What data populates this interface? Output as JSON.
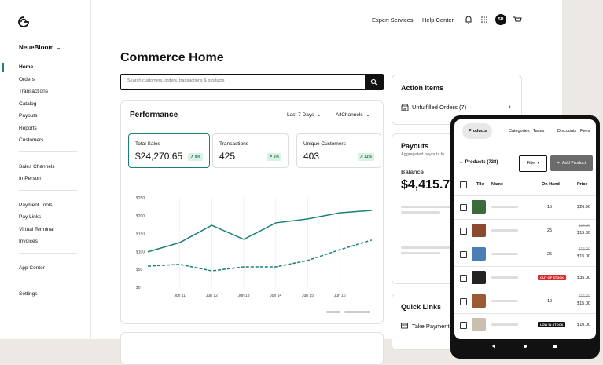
{
  "sidebar": {
    "store": "NeueBloom",
    "nav_groups": [
      [
        "Home",
        "Orders",
        "Transactions",
        "Catalog",
        "Payouts",
        "Reports",
        "Customers"
      ],
      [
        "Sales Channels",
        "In Person"
      ],
      [
        "Payment Tools",
        "Pay Links",
        "Virtual Terminal",
        "Invoices"
      ],
      [
        "App Center"
      ],
      [
        "Settings"
      ]
    ]
  },
  "header": {
    "links": [
      "Expert Services",
      "Help Center"
    ],
    "avatar": "SR"
  },
  "page_title": "Commerce Home",
  "search_placeholder": "Search customers, orders, transactions & products",
  "performance": {
    "title": "Performance",
    "filters": [
      "Last 7 Days",
      "AllChannels"
    ],
    "kpis": [
      {
        "label": "Total Sales",
        "value": "$24,270.65",
        "change": "9%"
      },
      {
        "label": "Transactions",
        "value": "425",
        "change": "5%"
      },
      {
        "label": "Unique Customers",
        "value": "403",
        "change": "11%"
      }
    ],
    "chart": {
      "type": "line",
      "categories": [
        null,
        "Jun 11",
        "Jun 12",
        "Jun 13",
        "Jun 14",
        "Jun 15",
        "Jun 16",
        null
      ],
      "ylim": [
        0,
        250
      ],
      "yticks": [
        {
          "value": 0,
          "label": "$0"
        },
        {
          "value": 50,
          "label": "$50"
        },
        {
          "value": 100,
          "label": "$100"
        },
        {
          "value": 150,
          "label": "$150"
        },
        {
          "value": 200,
          "label": "$200"
        },
        {
          "value": 250,
          "label": "$250"
        }
      ],
      "series": [
        {
          "color": "#1b7f79",
          "style": "solid",
          "values": [
            99,
            125,
            173,
            134,
            180,
            191,
            208,
            215
          ]
        },
        {
          "color": "#1b7f79",
          "style": "dashed",
          "values": [
            59,
            64,
            46,
            57,
            57,
            75,
            105,
            132
          ]
        }
      ]
    }
  },
  "action_items": {
    "title": "Action Items",
    "items": [
      "Unfulfilled Orders (7)"
    ]
  },
  "payouts": {
    "title": "Payouts",
    "subtitle": "Aggregated payouts fo",
    "balance_label": "Balance",
    "balance": "$4,415.7"
  },
  "quick_links": {
    "title": "Quick Links",
    "items": [
      "Take Payment"
    ]
  },
  "phone": {
    "tabs": [
      "Products",
      "Categories",
      "Taxes",
      "Discounts",
      "Fees"
    ],
    "products_count": "Products (728)",
    "filter": "Filter",
    "add": "Add Product",
    "columns": [
      "Tile",
      "Name",
      "On Hand",
      "Price"
    ],
    "rows": [
      {
        "on_hand": "15",
        "price": "$26.90"
      },
      {
        "on_hand": "25",
        "old_price": "$16.00",
        "price": "$15.00"
      },
      {
        "on_hand": "25",
        "old_price": "$16.00",
        "price": "$15.00"
      },
      {
        "badge": "OUT OF STOCK",
        "price": "$35.00"
      },
      {
        "on_hand": "19",
        "old_price": "$16.00",
        "price": "$15.00"
      },
      {
        "badge": "LOW IN STOCK",
        "price": "$10.00"
      }
    ]
  }
}
